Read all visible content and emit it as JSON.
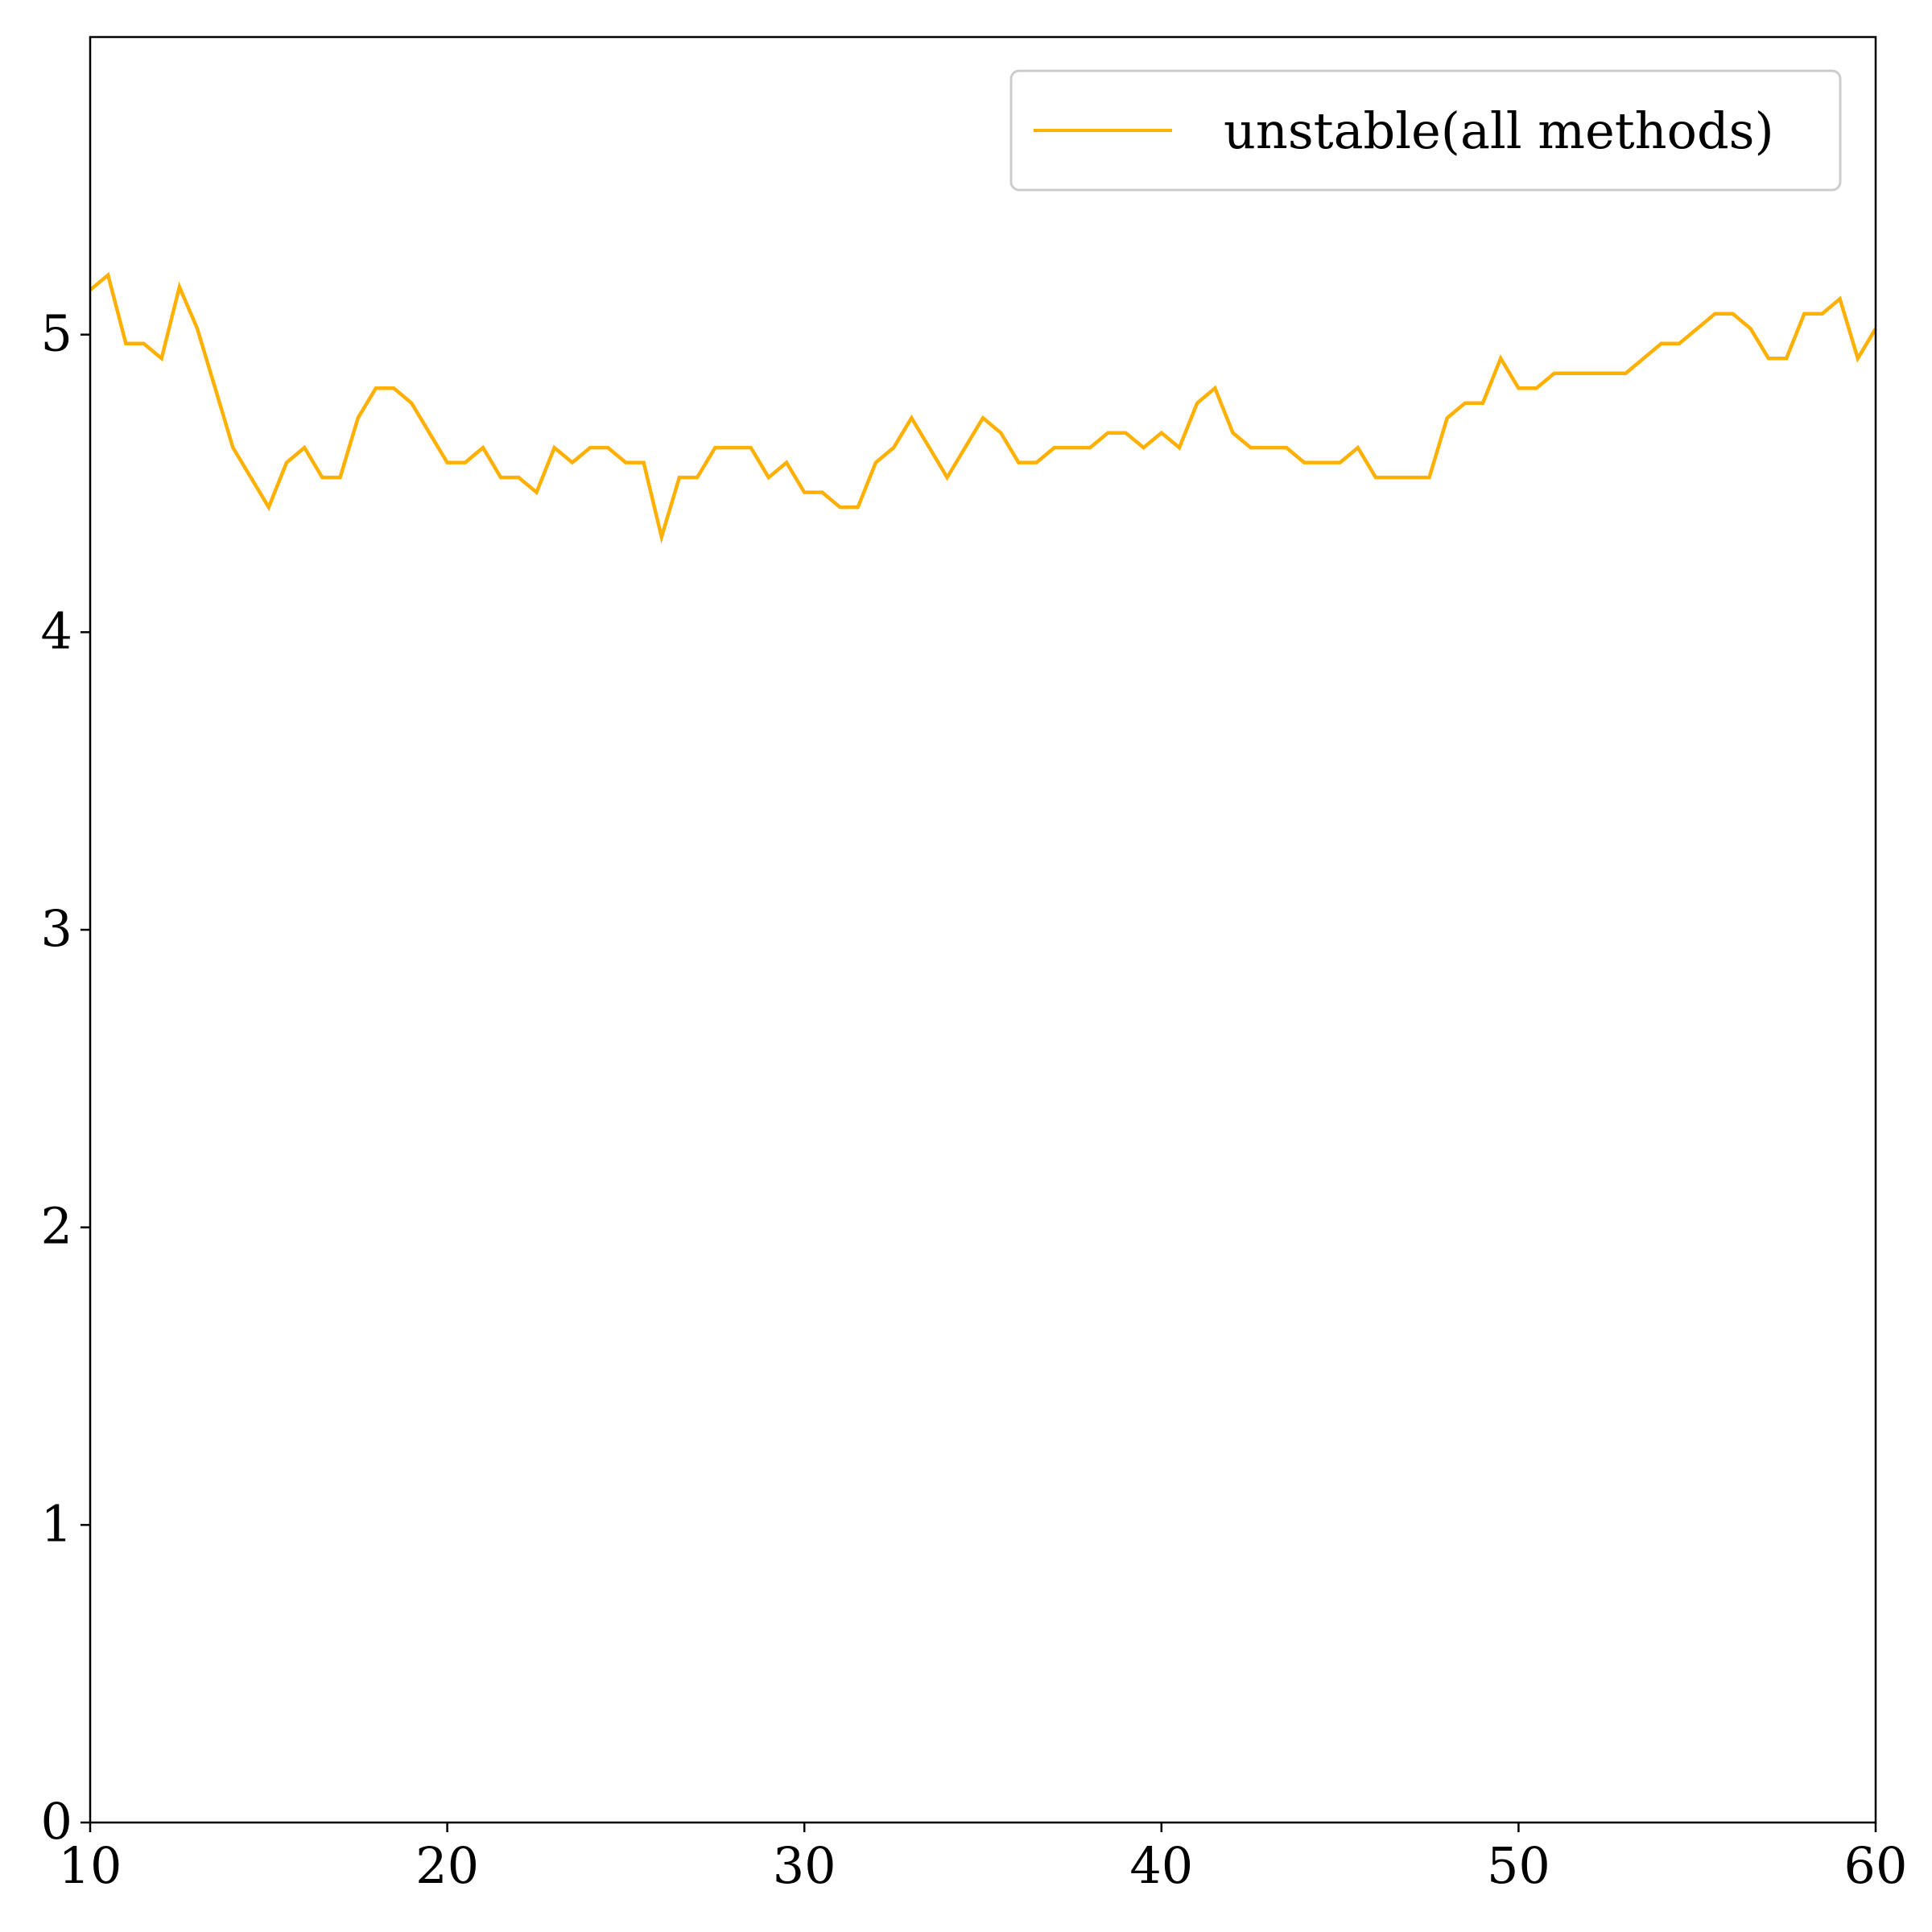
{
  "chart_data": {
    "type": "line",
    "title": "",
    "xlabel": "",
    "ylabel": "",
    "xlim": [
      10,
      60
    ],
    "ylim": [
      0,
      6
    ],
    "xticks": [
      "10",
      "20",
      "30",
      "40",
      "50",
      "60"
    ],
    "yticks": [
      "0",
      "1",
      "2",
      "3",
      "4",
      "5"
    ],
    "grid": false,
    "legend": {
      "position": "top-right"
    },
    "series": [
      {
        "name": "unstable(all methods)",
        "color": "#FFB000",
        "x": [
          10,
          10.5,
          11,
          11.5,
          12,
          12.5,
          13,
          13.5,
          14,
          14.5,
          15,
          15.5,
          16,
          16.5,
          17,
          17.5,
          18,
          18.5,
          19,
          19.5,
          20,
          20.5,
          21,
          21.5,
          22,
          22.5,
          23,
          23.5,
          24,
          24.5,
          25,
          25.5,
          26,
          26.5,
          27,
          27.5,
          28,
          28.5,
          29,
          29.5,
          30,
          30.5,
          31,
          31.5,
          32,
          32.5,
          33,
          33.5,
          34,
          34.5,
          35,
          35.5,
          36,
          36.5,
          37,
          37.5,
          38,
          38.5,
          39,
          39.5,
          40,
          40.5,
          41,
          41.5,
          42,
          42.5,
          43,
          43.5,
          44,
          44.5,
          45,
          45.5,
          46,
          46.5,
          47,
          47.5,
          48,
          48.5,
          49,
          49.5,
          50,
          50.5,
          51,
          51.5,
          52,
          52.5,
          53,
          53.5,
          54,
          54.5,
          55,
          55.5,
          56,
          56.5,
          57,
          57.5,
          58,
          58.5,
          59,
          59.5,
          60
        ],
        "y": [
          5.15,
          5.2,
          4.97,
          4.97,
          4.92,
          5.16,
          5.02,
          4.82,
          4.62,
          4.52,
          4.42,
          4.57,
          4.62,
          4.52,
          4.52,
          4.72,
          4.82,
          4.82,
          4.77,
          4.67,
          4.57,
          4.57,
          4.62,
          4.52,
          4.52,
          4.47,
          4.62,
          4.57,
          4.62,
          4.62,
          4.57,
          4.57,
          4.32,
          4.52,
          4.52,
          4.62,
          4.62,
          4.62,
          4.52,
          4.57,
          4.47,
          4.47,
          4.42,
          4.42,
          4.57,
          4.62,
          4.72,
          4.62,
          4.52,
          4.62,
          4.72,
          4.67,
          4.57,
          4.57,
          4.62,
          4.62,
          4.62,
          4.67,
          4.67,
          4.62,
          4.67,
          4.62,
          4.77,
          4.82,
          4.67,
          4.62,
          4.62,
          4.62,
          4.57,
          4.57,
          4.57,
          4.62,
          4.52,
          4.52,
          4.52,
          4.52,
          4.72,
          4.77,
          4.77,
          4.92,
          4.82,
          4.82,
          4.87,
          4.87,
          4.87,
          4.87,
          4.87,
          4.92,
          4.97,
          4.97,
          5.02,
          5.07,
          5.07,
          5.02,
          4.92,
          4.92,
          5.07,
          5.07,
          5.12,
          4.92,
          5.02
        ]
      }
    ]
  }
}
